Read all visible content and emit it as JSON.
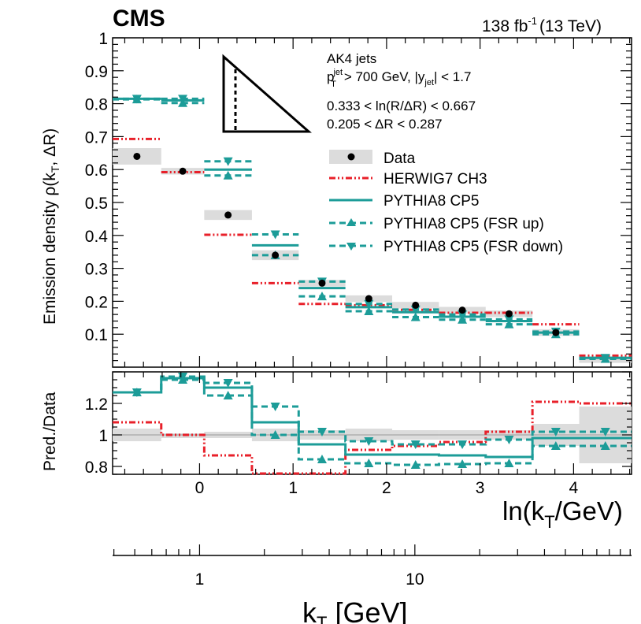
{
  "header": {
    "experiment": "CMS",
    "lumi_main": "138 fb",
    "lumi_exp": "-1",
    "lumi_energy": "(13 TeV)"
  },
  "annotations": {
    "jets": "AK4 jets",
    "pt_cut_prefix": "p",
    "pt_cut_sup": "jet",
    "pt_cut_sub": "T",
    "pt_cut_rest": "> 700 GeV, |y",
    "pt_cut_ysub": "jet",
    "pt_cut_end": "| < 1.7",
    "lnr_range": "0.333 < ln(R/ΔR) < 0.667",
    "dr_range": "0.205 < ΔR < 0.287"
  },
  "legend": [
    {
      "key": "data",
      "label": "Data"
    },
    {
      "key": "herwig",
      "label": "HERWIG7 CH3"
    },
    {
      "key": "pythia",
      "label": "PYTHIA8 CP5"
    },
    {
      "key": "fsrup",
      "label": "PYTHIA8 CP5 (FSR up)"
    },
    {
      "key": "fsrdown",
      "label": "PYTHIA8 CP5 (FSR down)"
    }
  ],
  "colors": {
    "data": "#000000",
    "band": "#dcdcdc",
    "herwig": "#e8202a",
    "pythia": "#1c9c98"
  },
  "axes": {
    "ylabel_main": "Emission density ρ(k",
    "ylabel_sub": "T",
    "ylabel_end": ", ΔR)",
    "ylabel_ratio": "Pred./Data",
    "xlabel_main": "ln(k",
    "xlabel_sub": "T",
    "xlabel_end": "/GeV)",
    "kt_label": "k",
    "kt_sub": "T",
    "kt_unit": " [GeV]"
  },
  "chart_data": {
    "type": "step",
    "x_range": [
      -0.93,
      4.62
    ],
    "y_range": [
      0,
      1.0
    ],
    "ratio_range": [
      0.75,
      1.4
    ],
    "bin_edges": [
      -0.93,
      -0.41,
      0.05,
      0.56,
      1.06,
      1.56,
      2.06,
      2.56,
      3.06,
      3.56,
      4.06,
      4.62
    ],
    "x_ticks": [
      0,
      1,
      2,
      3,
      4
    ],
    "y_ticks": [
      0.1,
      0.2,
      0.3,
      0.4,
      0.5,
      0.6,
      0.7,
      0.8,
      0.9,
      1
    ],
    "ratio_ticks": [
      0.8,
      1,
      1.2
    ],
    "kt_ticks": [
      1,
      10
    ],
    "series": [
      {
        "name": "Data",
        "values": [
          0.64,
          0.595,
          0.462,
          0.34,
          0.255,
          0.208,
          0.188,
          0.173,
          0.162,
          0.105,
          0.027
        ],
        "band": [
          0.025,
          0.01,
          0.015,
          0.015,
          0.01,
          0.01,
          0.01,
          0.01,
          0.01,
          0.01,
          0.005
        ]
      },
      {
        "name": "HERWIG7 CH3",
        "values": [
          0.693,
          0.592,
          0.402,
          0.255,
          0.192,
          0.188,
          0.174,
          0.165,
          0.165,
          0.13,
          0.035
        ]
      },
      {
        "name": "PYTHIA8 CP5",
        "values": [
          0.815,
          0.81,
          0.6,
          0.37,
          0.24,
          0.182,
          0.167,
          0.153,
          0.14,
          0.105,
          0.028
        ]
      },
      {
        "name": "PYTHIA8 CP5 (FSR up)",
        "values": [
          0.813,
          0.802,
          0.582,
          0.34,
          0.215,
          0.17,
          0.152,
          0.144,
          0.13,
          0.1,
          0.025
        ]
      },
      {
        "name": "PYTHIA8 CP5 (FSR down)",
        "values": [
          0.815,
          0.815,
          0.625,
          0.403,
          0.26,
          0.192,
          0.175,
          0.16,
          0.145,
          0.108,
          0.028
        ]
      }
    ],
    "ratio": [
      {
        "name": "Data",
        "band": [
          0.04,
          0.01,
          0.02,
          0.04,
          0.03,
          0.04,
          0.03,
          0.03,
          0.03,
          0.07,
          0.18
        ]
      },
      {
        "name": "HERWIG7 CH3",
        "values": [
          1.08,
          1.0,
          0.87,
          0.75,
          0.75,
          0.905,
          0.93,
          0.955,
          1.02,
          1.21,
          1.2
        ]
      },
      {
        "name": "PYTHIA8 CP5",
        "values": [
          1.27,
          1.36,
          1.3,
          1.08,
          0.94,
          0.875,
          0.875,
          0.87,
          0.86,
          0.98,
          0.98
        ]
      },
      {
        "name": "PYTHIA8 CP5 (FSR up)",
        "values": [
          1.27,
          1.35,
          1.25,
          1.0,
          0.845,
          0.82,
          0.81,
          0.815,
          0.82,
          0.93,
          0.93
        ]
      },
      {
        "name": "PYTHIA8 CP5 (FSR down)",
        "values": [
          1.27,
          1.37,
          1.33,
          1.18,
          1.02,
          0.96,
          0.94,
          0.94,
          0.97,
          1.02,
          1.02
        ]
      }
    ]
  }
}
